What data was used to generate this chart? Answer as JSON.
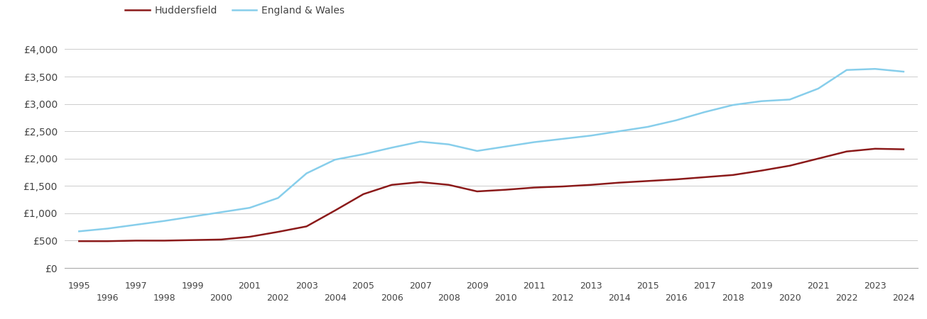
{
  "huddersfield_label": "Huddersfield",
  "england_wales_label": "England & Wales",
  "huddersfield_color": "#8B1A1A",
  "england_wales_color": "#87CEEB",
  "background_color": "#ffffff",
  "grid_color": "#cccccc",
  "ylim": [
    0,
    4200
  ],
  "yticks": [
    0,
    500,
    1000,
    1500,
    2000,
    2500,
    3000,
    3500,
    4000
  ],
  "years": [
    1995,
    1996,
    1997,
    1998,
    1999,
    2000,
    2001,
    2002,
    2003,
    2004,
    2005,
    2006,
    2007,
    2008,
    2009,
    2010,
    2011,
    2012,
    2013,
    2014,
    2015,
    2016,
    2017,
    2018,
    2019,
    2020,
    2021,
    2022,
    2023,
    2024
  ],
  "huddersfield_values": [
    490,
    490,
    500,
    500,
    510,
    520,
    570,
    660,
    760,
    1050,
    1350,
    1520,
    1570,
    1520,
    1400,
    1430,
    1470,
    1490,
    1520,
    1560,
    1590,
    1620,
    1660,
    1700,
    1780,
    1870,
    2000,
    2130,
    2180,
    2170
  ],
  "england_wales_values": [
    670,
    720,
    790,
    860,
    940,
    1020,
    1100,
    1280,
    1730,
    1980,
    2080,
    2200,
    2310,
    2260,
    2140,
    2220,
    2300,
    2360,
    2420,
    2500,
    2580,
    2700,
    2850,
    2980,
    3050,
    3080,
    3280,
    3620,
    3640,
    3590
  ],
  "xtick_odd": [
    1995,
    1997,
    1999,
    2001,
    2003,
    2005,
    2007,
    2009,
    2011,
    2013,
    2015,
    2017,
    2019,
    2021,
    2023
  ],
  "xtick_even": [
    1996,
    1998,
    2000,
    2002,
    2004,
    2006,
    2008,
    2010,
    2012,
    2014,
    2016,
    2018,
    2020,
    2022,
    2024
  ]
}
